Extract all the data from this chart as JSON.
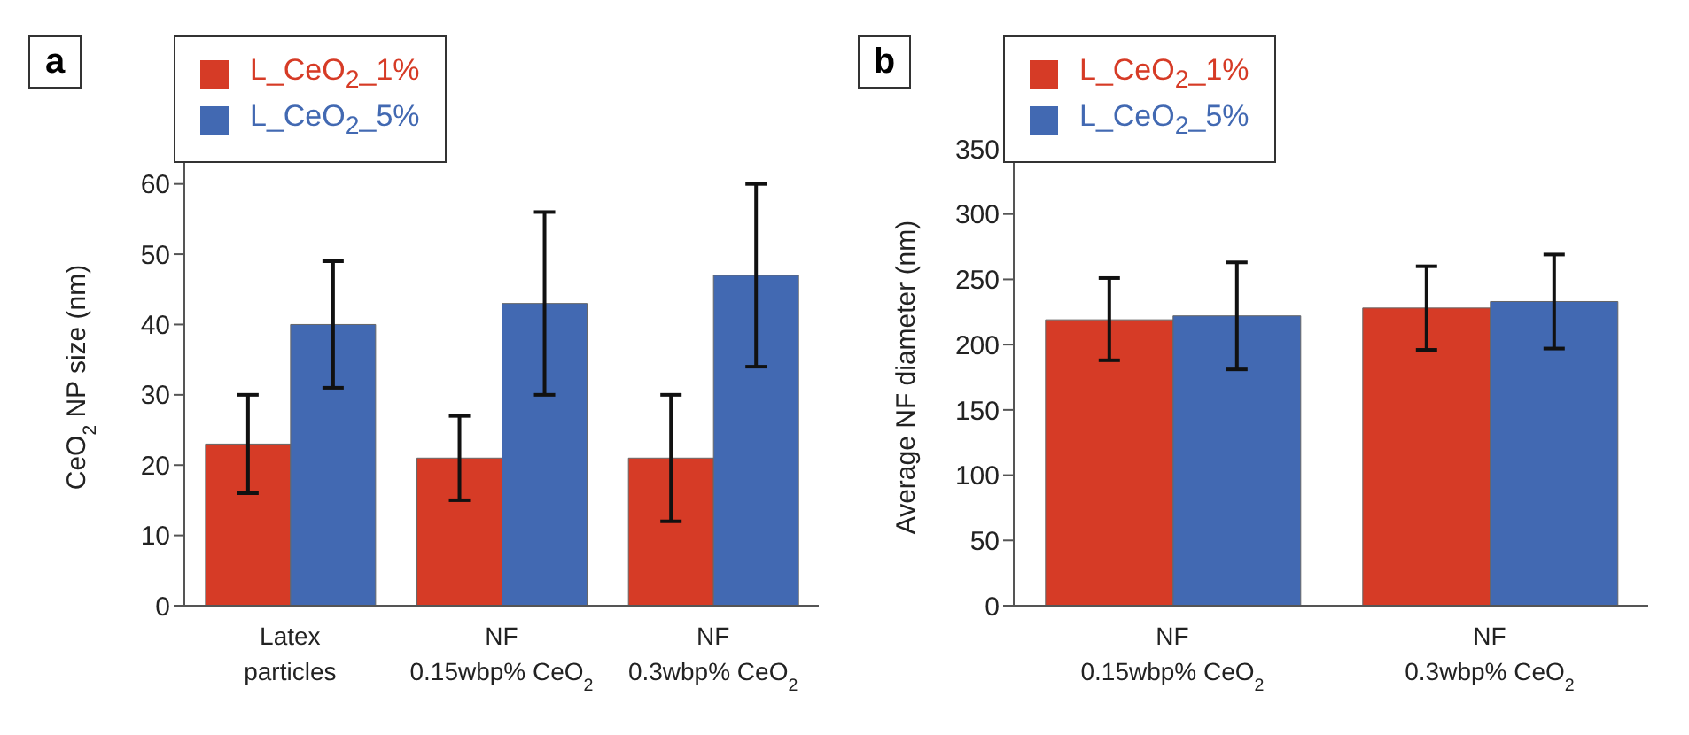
{
  "chart_data": [
    {
      "type": "bar",
      "title": "a",
      "ylabel": "CeO$_{2}$ NP size (nm)",
      "categories": [
        "Latex\nparticles",
        "NF\n0.15wbp% CeO$_{2}$",
        "NF\n0.3wbp% CeO$_{2}$"
      ],
      "series": [
        {
          "name": "L_CeO$_{2}$_1%",
          "color": "#d63b26",
          "values": [
            23,
            21,
            21
          ],
          "errors": [
            [
              16,
              30
            ],
            [
              15,
              27
            ],
            [
              12,
              30
            ]
          ]
        },
        {
          "name": "L_CeO$_{2}$_5%",
          "color": "#4269b2",
          "values": [
            40,
            43,
            47
          ],
          "errors": [
            [
              31,
              49
            ],
            [
              30,
              56
            ],
            [
              34,
              60
            ]
          ]
        }
      ],
      "ylim": [
        0,
        65
      ],
      "yticks": [
        0,
        10,
        20,
        30,
        40,
        50,
        60
      ],
      "grid": false,
      "legend": "top left"
    },
    {
      "type": "bar",
      "title": "b",
      "ylabel": "Average NF diameter (nm)",
      "categories": [
        "NF\n0.15wbp% CeO$_{2}$",
        "NF\n0.3wbp% CeO$_{2}$"
      ],
      "series": [
        {
          "name": "L_CeO$_{2}$_1%",
          "color": "#d63b26",
          "values": [
            219,
            228
          ],
          "errors": [
            [
              188,
              251
            ],
            [
              196,
              260
            ]
          ]
        },
        {
          "name": "L_CeO$_{2}$_5%",
          "color": "#4269b2",
          "values": [
            222,
            233
          ],
          "errors": [
            [
              181,
              263
            ],
            [
              197,
              269
            ]
          ]
        }
      ],
      "ylim": [
        0,
        350
      ],
      "yticks": [
        0,
        50,
        100,
        150,
        200,
        250,
        300,
        350
      ],
      "grid": false,
      "legend": "top left"
    }
  ]
}
